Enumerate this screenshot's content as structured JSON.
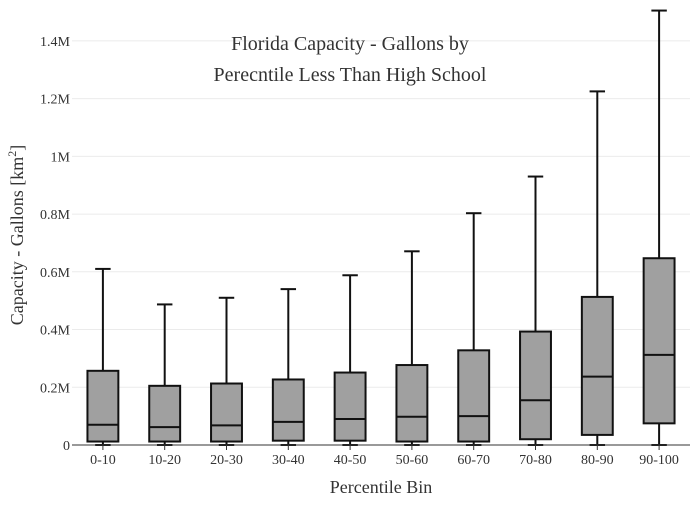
{
  "chart_data": {
    "type": "box",
    "title_lines": [
      "Florida Capacity - Gallons by",
      "Perecntile Less Than High School"
    ],
    "xlabel": "Percentile Bin",
    "ylabel_main": "Capacity - Gallons  [km",
    "ylabel_sup": "2",
    "ylabel_close": "]",
    "ylim": [
      0,
      1500000
    ],
    "y_ticks": [
      {
        "value": 0,
        "label": "0"
      },
      {
        "value": 200000,
        "label": "0.2M"
      },
      {
        "value": 400000,
        "label": "0.4M"
      },
      {
        "value": 600000,
        "label": "0.6M"
      },
      {
        "value": 800000,
        "label": "0.8M"
      },
      {
        "value": 1000000,
        "label": "1M"
      },
      {
        "value": 1200000,
        "label": "1.2M"
      },
      {
        "value": 1400000,
        "label": "1.4M"
      }
    ],
    "grid": true,
    "categories": [
      "0-10",
      "10-20",
      "20-30",
      "30-40",
      "40-50",
      "50-60",
      "60-70",
      "70-80",
      "80-90",
      "90-100"
    ],
    "boxes": [
      {
        "min": 0,
        "q1": 12000,
        "median": 70000,
        "q3": 257000,
        "max": 610000
      },
      {
        "min": 0,
        "q1": 12000,
        "median": 62000,
        "q3": 205000,
        "max": 487000
      },
      {
        "min": 0,
        "q1": 12000,
        "median": 68000,
        "q3": 213000,
        "max": 510000
      },
      {
        "min": 0,
        "q1": 15000,
        "median": 80000,
        "q3": 227000,
        "max": 540000
      },
      {
        "min": 0,
        "q1": 15000,
        "median": 90000,
        "q3": 251000,
        "max": 588000
      },
      {
        "min": 0,
        "q1": 12000,
        "median": 98000,
        "q3": 277000,
        "max": 671000
      },
      {
        "min": 0,
        "q1": 12000,
        "median": 100000,
        "q3": 328000,
        "max": 803000
      },
      {
        "min": 0,
        "q1": 20000,
        "median": 155000,
        "q3": 393000,
        "max": 930000
      },
      {
        "min": 0,
        "q1": 35000,
        "median": 237000,
        "q3": 513000,
        "max": 1225000
      },
      {
        "min": 0,
        "q1": 75000,
        "median": 312000,
        "q3": 647000,
        "max": 1505000
      }
    ],
    "colors": {
      "box_fill": "#a0a0a0",
      "box_stroke": "#111111",
      "grid": "#ebebeb",
      "axis": "#333333"
    }
  }
}
